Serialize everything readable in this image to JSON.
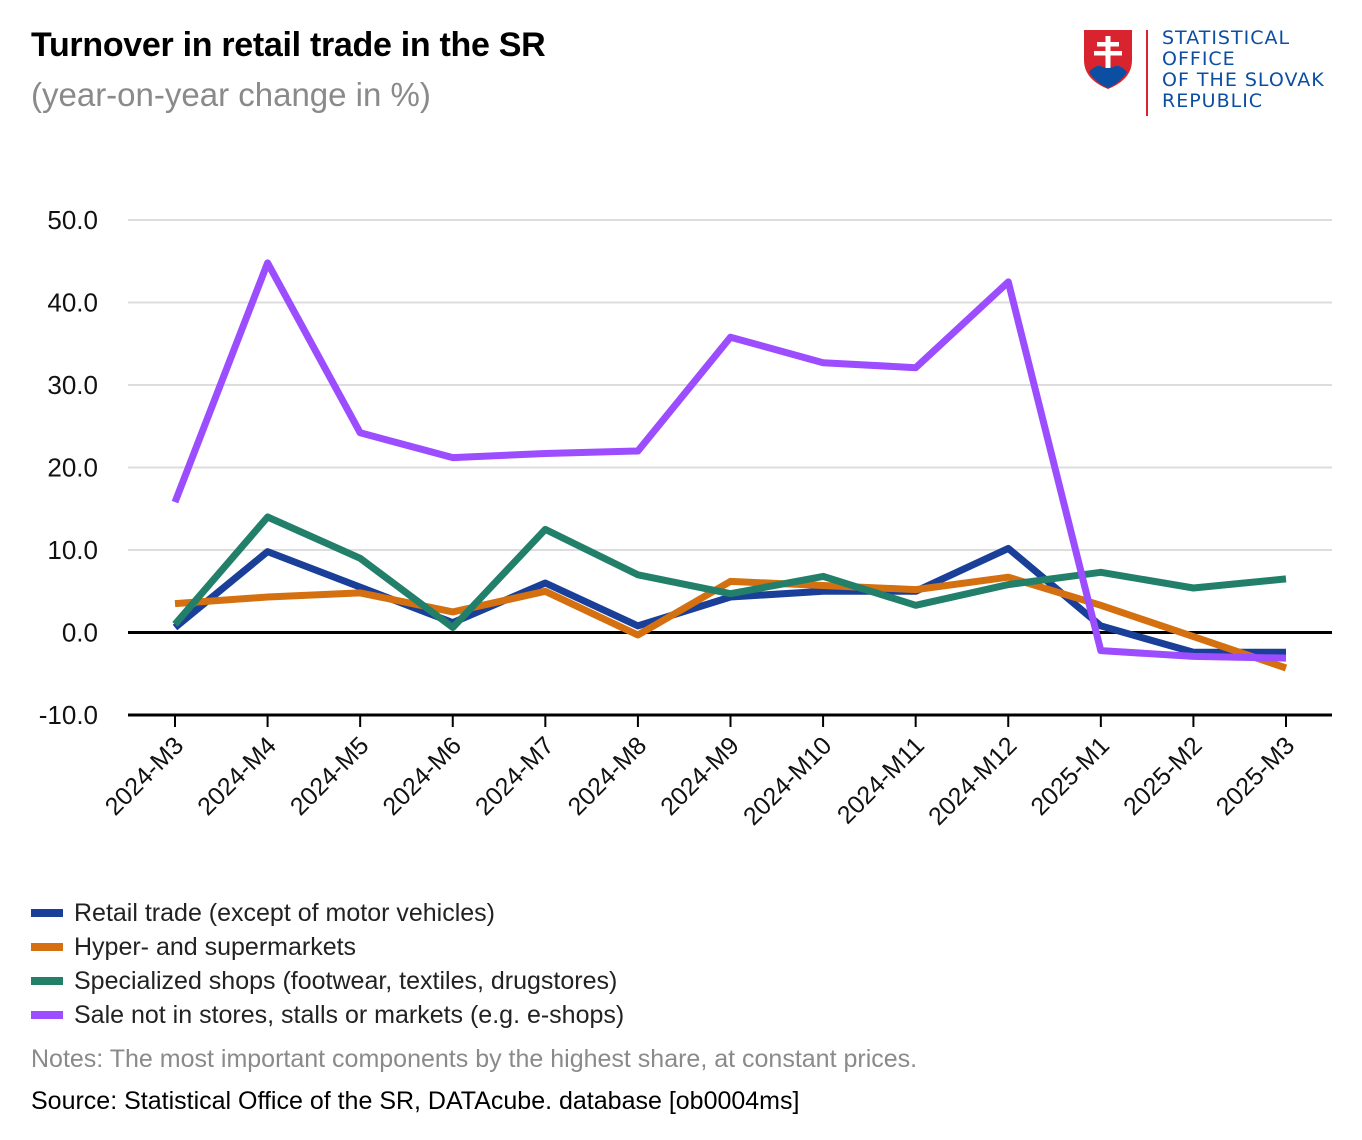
{
  "header": {
    "title": "Turnover in retail trade in the SR",
    "subtitle": "(year-on-year change in %)"
  },
  "logo": {
    "icon": "slovak-coat-of-arms-icon",
    "lines": [
      "STATISTICAL",
      "OFFICE",
      "OF THE SLOVAK",
      "REPUBLIC"
    ],
    "text_color": "#0b4ea2",
    "accent_color": "#d9232e"
  },
  "chart_data": {
    "type": "line",
    "title": "Turnover in retail trade in the SR",
    "subtitle": "(year-on-year change in %)",
    "xlabel": "",
    "ylabel": "",
    "ylim": [
      -10,
      50
    ],
    "yticks": [
      50,
      40,
      30,
      20,
      10,
      0,
      -10
    ],
    "ytick_labels": [
      "50.0",
      "40.0",
      "30.0",
      "20.0",
      "10.0",
      "0.0",
      "-10.0"
    ],
    "grid": true,
    "legend_position": "bottom-left",
    "categories": [
      "2024-M3",
      "2024-M4",
      "2024-M5",
      "2024-M6",
      "2024-M7",
      "2024-M8",
      "2024-M9",
      "2024-M10",
      "2024-M11",
      "2024-M12",
      "2025-M1",
      "2025-M2",
      "2025-M3"
    ],
    "series": [
      {
        "name": "Retail trade (except of motor vehicles)",
        "color": "#1a3f99",
        "values": [
          0.6,
          9.8,
          5.5,
          1.2,
          6.0,
          0.8,
          4.3,
          5.0,
          5.0,
          10.2,
          0.8,
          -2.4,
          -2.4
        ]
      },
      {
        "name": "Hyper- and supermarkets",
        "color": "#d4700f",
        "values": [
          3.5,
          4.3,
          4.8,
          2.5,
          5.0,
          -0.3,
          6.2,
          5.7,
          5.2,
          6.7,
          3.3,
          -0.5,
          -4.3
        ]
      },
      {
        "name": "Specialized shops (footwear, textiles, drugstores)",
        "color": "#22806a",
        "values": [
          1.0,
          14.0,
          9.0,
          0.6,
          12.5,
          7.0,
          4.7,
          6.8,
          3.3,
          5.8,
          7.3,
          5.4,
          6.5
        ]
      },
      {
        "name": "Sale not in stores, stalls or markets (e.g. e-shops)",
        "color": "#9b4dff",
        "values": [
          15.8,
          44.8,
          24.2,
          21.2,
          21.7,
          22.0,
          35.8,
          32.7,
          32.1,
          42.5,
          -2.2,
          -2.9,
          -3.1
        ]
      }
    ]
  },
  "notes": "Notes: The most important components by the highest share, at constant prices.",
  "source": "Source: Statistical Office of the SR, DATAcube. database [ob0004ms]"
}
